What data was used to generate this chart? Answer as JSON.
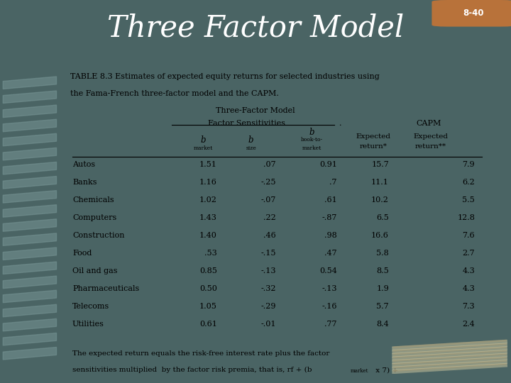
{
  "title": "Three Factor Model",
  "slide_num": "8-40",
  "bg_header_color": "#4a6464",
  "bg_content_color": "#f0ece0",
  "bg_footer_color": "#4a6464",
  "table_caption_line1": "TABLE 8.3 Estimates of expected equity returns for selected industries using",
  "table_caption_line2": "the Fama-French three-factor model and the CAPM.",
  "industries": [
    "Autos",
    "Banks",
    "Chemicals",
    "Computers",
    "Construction",
    "Food",
    "Oil and gas",
    "Pharmaceuticals",
    "Telecoms",
    "Utilities"
  ],
  "b_market": [
    "1.51",
    "1.16",
    "1.02",
    "1.43",
    "1.40",
    ".53",
    "0.85",
    "0.50",
    "1.05",
    "0.61"
  ],
  "b_size": [
    ".07",
    "-.25",
    "-.07",
    ".22",
    ".46",
    "-.15",
    "-.13",
    "-.32",
    "-.29",
    "-.01"
  ],
  "b_book_market": [
    "0.91",
    ".7",
    ".61",
    "-.87",
    ".98",
    ".47",
    "0.54",
    "-.13",
    "-.16",
    ".77"
  ],
  "exp_return": [
    "15.7",
    "11.1",
    "10.2",
    "6.5",
    "16.6",
    "5.8",
    "8.5",
    "1.9",
    "5.7",
    "8.4"
  ],
  "capm_return": [
    "7.9",
    "6.2",
    "5.5",
    "12.8",
    "7.6",
    "2.7",
    "4.3",
    "4.3",
    "7.3",
    "2.4"
  ],
  "badge_color": "#b8723a",
  "stripe_colors": [
    "#5a7878",
    "#6a8888",
    "#4a6868"
  ],
  "bottom_img_color": "#c8b890"
}
